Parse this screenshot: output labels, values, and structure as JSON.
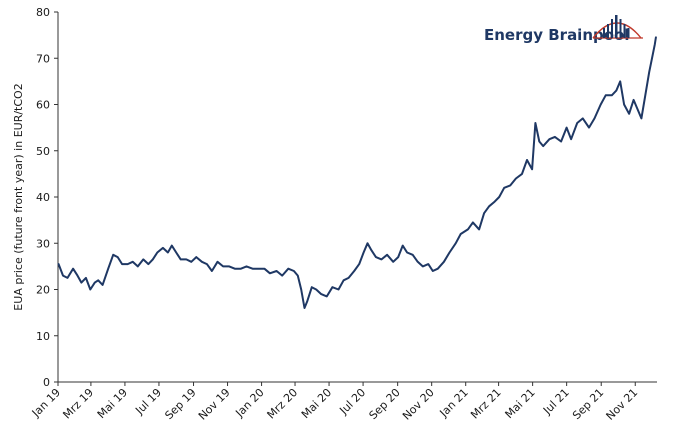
{
  "logo": {
    "text": "Energy Brainpool"
  },
  "colors": {
    "line": "#1f3864",
    "axis": "#333333",
    "logo_text": "#1f3864",
    "logo_mark": "#c0392b"
  },
  "chart_data": {
    "type": "line",
    "title": "",
    "xlabel": "",
    "ylabel": "EUA price (future front year) in EUR/tCO2",
    "ylim": [
      0,
      80
    ],
    "yticks": [
      0,
      10,
      20,
      30,
      40,
      50,
      60,
      70,
      80
    ],
    "xlim": [
      "2019-01-01",
      "2021-12-10"
    ],
    "xticks": [
      {
        "date": "2019-01-01",
        "label": "Jan 19"
      },
      {
        "date": "2019-03-01",
        "label": "Mrz 19"
      },
      {
        "date": "2019-05-01",
        "label": "Mai 19"
      },
      {
        "date": "2019-07-01",
        "label": "Jul 19"
      },
      {
        "date": "2019-09-01",
        "label": "Sep 19"
      },
      {
        "date": "2019-11-01",
        "label": "Nov 19"
      },
      {
        "date": "2020-01-01",
        "label": "Jan 20"
      },
      {
        "date": "2020-03-01",
        "label": "Mrz 20"
      },
      {
        "date": "2020-05-01",
        "label": "Mai 20"
      },
      {
        "date": "2020-07-01",
        "label": "Jul 20"
      },
      {
        "date": "2020-09-01",
        "label": "Sep 20"
      },
      {
        "date": "2020-11-01",
        "label": "Nov 20"
      },
      {
        "date": "2021-01-01",
        "label": "Jan 21"
      },
      {
        "date": "2021-03-01",
        "label": "Mrz 21"
      },
      {
        "date": "2021-05-01",
        "label": "Mai 21"
      },
      {
        "date": "2021-07-01",
        "label": "Jul 21"
      },
      {
        "date": "2021-09-01",
        "label": "Sep 21"
      },
      {
        "date": "2021-11-01",
        "label": "Nov 21"
      }
    ],
    "series": [
      {
        "x": [
          "2019-01-02",
          "2019-01-10",
          "2019-01-18",
          "2019-01-28",
          "2019-02-05",
          "2019-02-12",
          "2019-02-20",
          "2019-02-28",
          "2019-03-08",
          "2019-03-14",
          "2019-03-22",
          "2019-04-01",
          "2019-04-10",
          "2019-04-18",
          "2019-04-26",
          "2019-05-06",
          "2019-05-15",
          "2019-05-24",
          "2019-06-03",
          "2019-06-12",
          "2019-06-20",
          "2019-06-28",
          "2019-07-08",
          "2019-07-17",
          "2019-07-24",
          "2019-08-01",
          "2019-08-09",
          "2019-08-19",
          "2019-08-28",
          "2019-09-06",
          "2019-09-16",
          "2019-09-25",
          "2019-10-04",
          "2019-10-14",
          "2019-10-24",
          "2019-11-04",
          "2019-11-14",
          "2019-11-25",
          "2019-12-05",
          "2019-12-16",
          "2020-01-06",
          "2020-01-16",
          "2020-01-28",
          "2020-02-07",
          "2020-02-18",
          "2020-02-28",
          "2020-03-06",
          "2020-03-12",
          "2020-03-18",
          "2020-03-23",
          "2020-03-31",
          "2020-04-08",
          "2020-04-17",
          "2020-04-27",
          "2020-05-07",
          "2020-05-18",
          "2020-05-27",
          "2020-06-05",
          "2020-06-15",
          "2020-06-24",
          "2020-07-02",
          "2020-07-09",
          "2020-07-16",
          "2020-07-24",
          "2020-08-03",
          "2020-08-13",
          "2020-08-24",
          "2020-09-02",
          "2020-09-10",
          "2020-09-18",
          "2020-09-28",
          "2020-10-07",
          "2020-10-16",
          "2020-10-26",
          "2020-11-03",
          "2020-11-12",
          "2020-11-23",
          "2020-12-03",
          "2020-12-14",
          "2020-12-23",
          "2021-01-05",
          "2021-01-14",
          "2021-01-25",
          "2021-02-03",
          "2021-02-12",
          "2021-02-22",
          "2021-03-02",
          "2021-03-11",
          "2021-03-22",
          "2021-04-01",
          "2021-04-12",
          "2021-04-21",
          "2021-04-30",
          "2021-05-06",
          "2021-05-13",
          "2021-05-20",
          "2021-05-31",
          "2021-06-10",
          "2021-06-21",
          "2021-07-01",
          "2021-07-09",
          "2021-07-20",
          "2021-07-30",
          "2021-08-10",
          "2021-08-20",
          "2021-08-31",
          "2021-09-09",
          "2021-09-20",
          "2021-09-28",
          "2021-10-05",
          "2021-10-12",
          "2021-10-21",
          "2021-10-29",
          "2021-11-05",
          "2021-11-12",
          "2021-11-19",
          "2021-11-26",
          "2021-12-01",
          "2021-12-06",
          "2021-12-08"
        ],
        "values": [
          25.5,
          23.0,
          22.5,
          24.5,
          23.0,
          21.5,
          22.5,
          20.0,
          21.5,
          22.0,
          21.0,
          24.5,
          27.5,
          27.0,
          25.5,
          25.5,
          26.0,
          25.0,
          26.5,
          25.5,
          26.5,
          28.0,
          29.0,
          28.0,
          29.5,
          28.0,
          26.5,
          26.5,
          26.0,
          27.0,
          26.0,
          25.5,
          24.0,
          26.0,
          25.0,
          25.0,
          24.5,
          24.5,
          25.0,
          24.5,
          24.5,
          23.5,
          24.0,
          23.0,
          24.5,
          24.0,
          23.0,
          20.0,
          16.0,
          17.5,
          20.5,
          20.0,
          19.0,
          18.5,
          20.5,
          20.0,
          22.0,
          22.5,
          24.0,
          25.5,
          28.0,
          30.0,
          28.5,
          27.0,
          26.5,
          27.5,
          26.0,
          27.0,
          29.5,
          28.0,
          27.5,
          26.0,
          25.0,
          25.5,
          24.0,
          24.5,
          26.0,
          28.0,
          30.0,
          32.0,
          33.0,
          34.5,
          33.0,
          36.5,
          38.0,
          39.0,
          40.0,
          42.0,
          42.5,
          44.0,
          45.0,
          48.0,
          46.0,
          56.0,
          52.0,
          51.0,
          52.5,
          53.0,
          52.0,
          55.0,
          52.5,
          56.0,
          57.0,
          55.0,
          57.0,
          60.0,
          62.0,
          62.0,
          63.0,
          65.0,
          60.0,
          58.0,
          61.0,
          59.0,
          57.0,
          62.0,
          67.0,
          70.0,
          73.0,
          74.5
        ]
      }
    ],
    "grid": false
  }
}
